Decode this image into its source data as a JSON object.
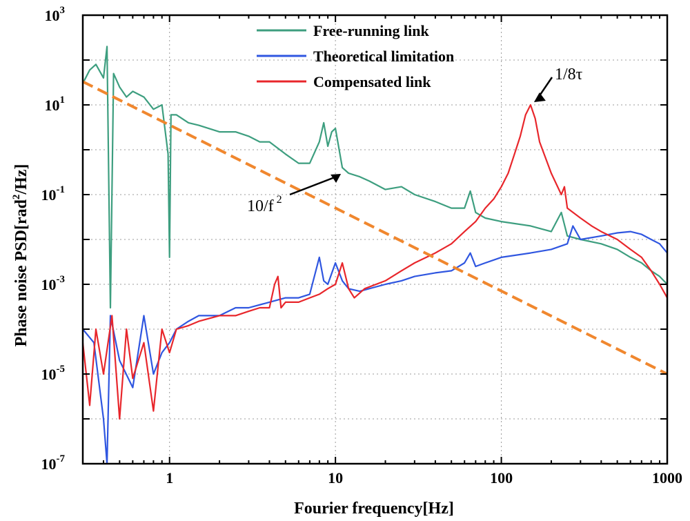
{
  "chart_data": {
    "type": "line",
    "xlabel": "Fourier frequency[Hz]",
    "ylabel_parts": [
      "Phase noise PSD[rad",
      "2",
      "/Hz]"
    ],
    "x_scale": "log",
    "y_scale": "log",
    "xlim": [
      0.3,
      1000
    ],
    "ylim": [
      1e-07,
      1000
    ],
    "x_ticks": [
      {
        "value": 1,
        "label": "1"
      },
      {
        "value": 10,
        "label": "10"
      },
      {
        "value": 100,
        "label": "100"
      },
      {
        "value": 1000,
        "label": "1000"
      }
    ],
    "y_ticks": [
      {
        "value": 1e-07,
        "base": "10",
        "exp": "-7"
      },
      {
        "value": 1e-05,
        "base": "10",
        "exp": "-5"
      },
      {
        "value": 0.001,
        "base": "10",
        "exp": "-3"
      },
      {
        "value": 0.1,
        "base": "10",
        "exp": "-1"
      },
      {
        "value": 10,
        "base": "10",
        "exp": "1"
      },
      {
        "value": 1000,
        "base": "10",
        "exp": "3"
      }
    ],
    "grid": "dotted",
    "legend_position": "top-center",
    "series": [
      {
        "name": "Free-running link",
        "color": "#3d9e7f",
        "x": [
          0.3,
          0.33,
          0.36,
          0.4,
          0.42,
          0.44,
          0.46,
          0.5,
          0.55,
          0.6,
          0.7,
          0.8,
          0.9,
          0.98,
          1.0,
          1.02,
          1.1,
          1.3,
          1.5,
          2.0,
          2.5,
          3.0,
          3.5,
          4.0,
          5.0,
          6.0,
          7.0,
          8.0,
          8.5,
          9.0,
          9.5,
          10.0,
          11.0,
          12.0,
          14.0,
          16.0,
          20.0,
          25.0,
          30.0,
          40.0,
          50.0,
          60.0,
          65.0,
          70.0,
          80.0,
          100.0,
          150.0,
          200.0,
          230.0,
          250.0,
          300.0,
          400.0,
          500.0,
          600.0,
          700.0,
          800.0,
          900.0,
          1000.0
        ],
        "y": [
          30,
          60,
          80,
          40,
          200,
          0.0003,
          50,
          25,
          15,
          20,
          15,
          8,
          10,
          0.8,
          0.004,
          6,
          6,
          4,
          3.5,
          2.5,
          2.5,
          2,
          1.5,
          1.5,
          0.8,
          0.5,
          0.5,
          1.5,
          4,
          1.2,
          2.5,
          3,
          0.4,
          0.3,
          0.25,
          0.2,
          0.13,
          0.15,
          0.1,
          0.07,
          0.05,
          0.05,
          0.12,
          0.04,
          0.03,
          0.025,
          0.02,
          0.015,
          0.04,
          0.012,
          0.01,
          0.008,
          0.006,
          0.004,
          0.003,
          0.002,
          0.0015,
          0.001
        ]
      },
      {
        "name": "Theoretical limitation",
        "color": "#2f56e0",
        "x": [
          0.3,
          0.35,
          0.4,
          0.42,
          0.44,
          0.5,
          0.6,
          0.7,
          0.8,
          0.9,
          1.0,
          1.1,
          1.3,
          1.5,
          2.0,
          2.5,
          3.0,
          4.0,
          5.0,
          6.0,
          7.0,
          8.0,
          8.5,
          9.0,
          10.0,
          11.0,
          12.0,
          14.0,
          16.0,
          20.0,
          25.0,
          30.0,
          40.0,
          50.0,
          60.0,
          65.0,
          70.0,
          80.0,
          100.0,
          150.0,
          200.0,
          250.0,
          270.0,
          300.0,
          400.0,
          500.0,
          600.0,
          700.0,
          800.0,
          900.0,
          1000.0
        ],
        "y": [
          0.0001,
          5e-05,
          1e-06,
          1e-07,
          0.0002,
          2e-05,
          5e-06,
          0.0002,
          1e-05,
          3e-05,
          5e-05,
          0.0001,
          0.00015,
          0.0002,
          0.0002,
          0.0003,
          0.0003,
          0.0004,
          0.0005,
          0.0005,
          0.0006,
          0.004,
          0.0012,
          0.001,
          0.003,
          0.0012,
          0.0008,
          0.0007,
          0.0008,
          0.001,
          0.0012,
          0.0015,
          0.0018,
          0.002,
          0.003,
          0.005,
          0.0025,
          0.003,
          0.004,
          0.005,
          0.006,
          0.008,
          0.02,
          0.01,
          0.012,
          0.014,
          0.015,
          0.013,
          0.01,
          0.008,
          0.005
        ]
      },
      {
        "name": "Compensated link",
        "color": "#e8262b",
        "x": [
          0.3,
          0.33,
          0.36,
          0.4,
          0.45,
          0.5,
          0.55,
          0.6,
          0.7,
          0.8,
          0.9,
          1.0,
          1.1,
          1.3,
          1.5,
          2.0,
          2.5,
          3.0,
          3.5,
          4.0,
          4.3,
          4.5,
          4.7,
          5.0,
          6.0,
          7.0,
          8.0,
          9.0,
          10.0,
          11.0,
          12.0,
          13.0,
          15.0,
          20.0,
          25.0,
          30.0,
          40.0,
          50.0,
          60.0,
          70.0,
          80.0,
          90.0,
          100.0,
          110.0,
          120.0,
          130.0,
          140.0,
          150.0,
          160.0,
          170.0,
          200.0,
          230.0,
          240.0,
          250.0,
          300.0,
          350.0,
          400.0,
          500.0,
          600.0,
          700.0,
          800.0,
          900.0,
          1000.0
        ],
        "y": [
          5e-05,
          2e-06,
          0.0001,
          1e-05,
          0.0002,
          1e-06,
          0.0001,
          8e-06,
          5e-05,
          1.5e-06,
          0.0001,
          3e-05,
          0.0001,
          0.00012,
          0.00015,
          0.0002,
          0.0002,
          0.00025,
          0.0003,
          0.0003,
          0.001,
          0.0015,
          0.0003,
          0.0004,
          0.0004,
          0.0005,
          0.0006,
          0.0008,
          0.001,
          0.003,
          0.0008,
          0.0005,
          0.0008,
          0.0012,
          0.002,
          0.003,
          0.005,
          0.008,
          0.015,
          0.025,
          0.05,
          0.08,
          0.15,
          0.3,
          0.8,
          2,
          6,
          10,
          5,
          1.5,
          0.3,
          0.1,
          0.15,
          0.05,
          0.03,
          0.02,
          0.015,
          0.01,
          0.006,
          0.004,
          0.002,
          0.001,
          0.0005
        ]
      },
      {
        "name": "",
        "style": "dashed",
        "color": "#f0872e",
        "x": [
          0.3,
          1000
        ],
        "y": [
          33,
          1e-05
        ]
      }
    ],
    "annotations": [
      {
        "key": "a1",
        "text": "1/8τ",
        "x": 150,
        "y": 10
      },
      {
        "key": "a2",
        "text": "10/f",
        "sup": "2",
        "x": 11,
        "y": 0.3
      }
    ]
  }
}
